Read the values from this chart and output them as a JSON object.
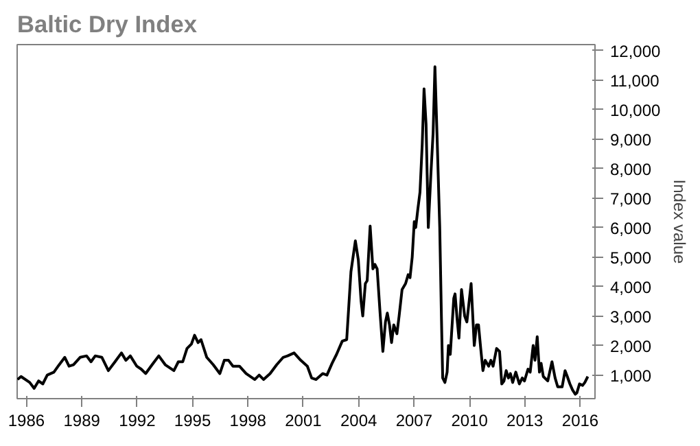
{
  "chart_data": {
    "type": "line",
    "title": "Baltic Dry Index",
    "ylabel": "Index value",
    "series": [
      {
        "color": "#000000",
        "x": [
          1985.52,
          1985.71,
          1986.18,
          1986.42,
          1986.66,
          1986.89,
          1987.13,
          1987.49,
          1987.72,
          1988.08,
          1988.31,
          1988.55,
          1988.91,
          1989.26,
          1989.5,
          1989.73,
          1990.09,
          1990.44,
          1990.8,
          1991.15,
          1991.39,
          1991.63,
          1991.98,
          1992.22,
          1992.46,
          1992.81,
          1993.17,
          1993.52,
          1993.99,
          1994.23,
          1994.47,
          1994.7,
          1994.94,
          1995.11,
          1995.3,
          1995.46,
          1995.77,
          1996.12,
          1996.48,
          1996.72,
          1996.95,
          1997.19,
          1997.54,
          1997.9,
          1998.37,
          1998.61,
          1998.85,
          1999.2,
          1999.56,
          1999.91,
          2000.15,
          2000.5,
          2000.86,
          2001.22,
          2001.45,
          2001.69,
          2002.05,
          2002.28,
          2002.56,
          2002.8,
          2003.11,
          2003.35,
          2003.58,
          2003.82,
          2003.98,
          2004.13,
          2004.22,
          2004.36,
          2004.46,
          2004.62,
          2004.77,
          2004.88,
          2005.0,
          2005.17,
          2005.31,
          2005.45,
          2005.55,
          2005.67,
          2005.78,
          2005.9,
          2006.07,
          2006.19,
          2006.35,
          2006.54,
          2006.68,
          2006.78,
          2006.9,
          2007.01,
          2007.09,
          2007.2,
          2007.32,
          2007.44,
          2007.54,
          2007.65,
          2007.77,
          2007.91,
          2008.03,
          2008.13,
          2008.25,
          2008.39,
          2008.48,
          2008.55,
          2008.67,
          2008.79,
          2008.86,
          2008.96,
          2009.15,
          2009.22,
          2009.33,
          2009.43,
          2009.57,
          2009.74,
          2009.86,
          2010.09,
          2010.26,
          2010.38,
          2010.49,
          2010.61,
          2010.73,
          2010.85,
          2011.04,
          2011.16,
          2011.28,
          2011.47,
          2011.63,
          2011.75,
          2011.87,
          2011.99,
          2012.11,
          2012.22,
          2012.34,
          2012.51,
          2012.7,
          2012.86,
          2012.98,
          2013.17,
          2013.29,
          2013.45,
          2013.55,
          2013.67,
          2013.79,
          2013.88,
          2014.0,
          2014.24,
          2014.47,
          2014.64,
          2014.78,
          2015.02,
          2015.18,
          2015.3,
          2015.44,
          2015.58,
          2015.73,
          2015.82,
          2015.96,
          2016.13,
          2016.25,
          2016.41
        ],
        "values": [
          850,
          950,
          750,
          550,
          800,
          700,
          1000,
          1100,
          1300,
          1600,
          1300,
          1350,
          1600,
          1650,
          1450,
          1650,
          1600,
          1150,
          1450,
          1750,
          1500,
          1650,
          1300,
          1200,
          1050,
          1350,
          1650,
          1350,
          1150,
          1450,
          1450,
          1900,
          2050,
          2350,
          2100,
          2200,
          1600,
          1350,
          1050,
          1500,
          1500,
          1300,
          1300,
          1050,
          850,
          1000,
          850,
          1050,
          1350,
          1600,
          1650,
          1750,
          1500,
          1300,
          900,
          850,
          1050,
          1000,
          1400,
          1700,
          2150,
          2200,
          4500,
          5550,
          4900,
          3500,
          3000,
          4100,
          4200,
          6050,
          4600,
          4750,
          4600,
          3000,
          1800,
          2800,
          3100,
          2700,
          2100,
          2700,
          2400,
          3000,
          3900,
          4100,
          4400,
          4300,
          5000,
          6200,
          6000,
          6600,
          7200,
          8800,
          10700,
          9500,
          6000,
          7800,
          9200,
          11450,
          9000,
          6000,
          3000,
          900,
          750,
          1100,
          2000,
          1700,
          3600,
          3750,
          2900,
          2250,
          3900,
          3000,
          2800,
          4100,
          2000,
          2700,
          2700,
          1900,
          1150,
          1500,
          1300,
          1500,
          1300,
          1900,
          1800,
          700,
          800,
          1150,
          900,
          1050,
          750,
          1100,
          700,
          900,
          800,
          1200,
          1100,
          2000,
          1500,
          2300,
          1100,
          1400,
          950,
          800,
          1450,
          900,
          600,
          600,
          1150,
          950,
          700,
          500,
          350,
          400,
          700,
          650,
          750,
          950
        ]
      }
    ],
    "xlim": [
      1985.5,
      2016.8
    ],
    "ylim": [
      200,
      12200
    ],
    "xticks": [
      1986,
      1989,
      1992,
      1995,
      1998,
      2001,
      2004,
      2007,
      2010,
      2013,
      2016
    ],
    "yticks": [
      {
        "value": 1000,
        "label": "1,000"
      },
      {
        "value": 2000,
        "label": "2,000"
      },
      {
        "value": 3000,
        "label": "3,000"
      },
      {
        "value": 4000,
        "label": "4,000"
      },
      {
        "value": 5000,
        "label": "5,000"
      },
      {
        "value": 6000,
        "label": "6,000"
      },
      {
        "value": 7000,
        "label": "7,000"
      },
      {
        "value": 8000,
        "label": "8,000"
      },
      {
        "value": 9000,
        "label": "9,000"
      },
      {
        "value": 10000,
        "label": "10,000"
      },
      {
        "value": 11000,
        "label": "11,000"
      },
      {
        "value": 12000,
        "label": "12,000"
      }
    ],
    "grid": false,
    "line_style": "solid"
  }
}
